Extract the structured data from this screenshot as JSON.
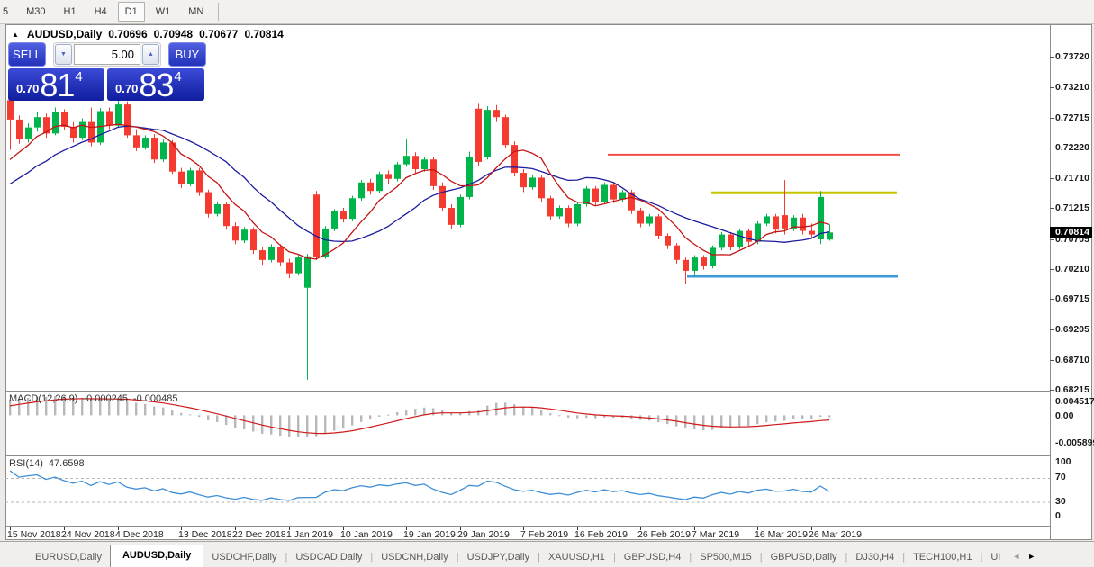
{
  "toolbar": {
    "timeframes": [
      "5",
      "M30",
      "H1",
      "H4",
      "D1",
      "W1",
      "MN"
    ],
    "active": "D1"
  },
  "title": {
    "symbol_period": "AUDUSD,Daily",
    "open": "0.70696",
    "high": "0.70948",
    "low": "0.70677",
    "close": "0.70814"
  },
  "icons": {
    "collapse": "▲",
    "spinner_up": "▲",
    "spinner_down": "▼",
    "scroll_left": "◄",
    "scroll_right": "►"
  },
  "trade_panel": {
    "sell_label": "SELL",
    "buy_label": "BUY",
    "volume": "5.00",
    "sell_price": {
      "small": "0.70",
      "big": "81",
      "sup": "4"
    },
    "buy_price": {
      "small": "0.70",
      "big": "83",
      "sup": "4"
    }
  },
  "indicators": {
    "macd_label": "MACD(12,26,9)",
    "macd_value": "-0.000245",
    "macd_signal": "-0.000485",
    "rsi_label": "RSI(14)",
    "rsi_value": "47.6598"
  },
  "price_axis": {
    "labels": [
      "0.73720",
      "0.73210",
      "0.72715",
      "0.72220",
      "0.71710",
      "0.71215",
      "0.70705",
      "0.70210",
      "0.69715",
      "0.69205",
      "0.68710",
      "0.68215"
    ],
    "current": "0.70814"
  },
  "macd_axis": [
    "0.004517",
    "0.00",
    "-0.005899"
  ],
  "rsi_axis": [
    "100",
    "70",
    "30",
    "0"
  ],
  "date_axis": [
    {
      "text": "15 Nov 2018",
      "i": 0
    },
    {
      "text": "24 Nov 2018",
      "i": 6
    },
    {
      "text": "4 Dec 2018",
      "i": 12
    },
    {
      "text": "13 Dec 2018",
      "i": 19
    },
    {
      "text": "22 Dec 2018",
      "i": 25
    },
    {
      "text": "1 Jan 2019",
      "i": 31
    },
    {
      "text": "10 Jan 2019",
      "i": 37
    },
    {
      "text": "19 Jan 2019",
      "i": 44
    },
    {
      "text": "29 Jan 2019",
      "i": 50
    },
    {
      "text": "7 Feb 2019",
      "i": 57
    },
    {
      "text": "16 Feb 2019",
      "i": 63
    },
    {
      "text": "26 Feb 2019",
      "i": 70
    },
    {
      "text": "7 Mar 2019",
      "i": 76
    },
    {
      "text": "16 Mar 2019",
      "i": 83
    },
    {
      "text": "26 Mar 2019",
      "i": 89
    }
  ],
  "tabs": {
    "items": [
      "EURUSD,Daily",
      "AUDUSD,Daily",
      "USDCHF,Daily",
      "USDCAD,Daily",
      "USDCNH,Daily",
      "USDJPY,Daily",
      "XAUUSD,H1",
      "GBPUSD,H4",
      "SP500,M15",
      "GBPUSD,Daily",
      "DJ30,H4",
      "TECH100,H1",
      "UI"
    ],
    "active": "AUDUSD,Daily"
  },
  "chart_data": {
    "type": "candlestick",
    "symbol": "AUDUSD",
    "timeframe": "Daily",
    "title": "AUDUSD,Daily",
    "ylim": [
      0.68215,
      0.7372
    ],
    "grid": false,
    "colors": {
      "bull": "#00b44c",
      "bear": "#f53b2f",
      "ma_fast": "#c41414",
      "ma_slow": "#1c1c9e",
      "macd_hist": "#b8b8b8",
      "macd_signal": "#d01a1a",
      "rsi": "#3f8fd6",
      "hline_red": "#f25048",
      "hline_yellow": "#c6c600",
      "hline_blue": "#3d9bd9"
    },
    "pre_history_closes": [
      0.71,
      0.7092,
      0.7115,
      0.7108,
      0.713,
      0.7122,
      0.7145,
      0.7138,
      0.716,
      0.7152,
      0.7175,
      0.7168,
      0.7195,
      0.7215,
      0.724
    ],
    "candles": [
      [
        0.73,
        0.7305,
        0.7218,
        0.7268
      ],
      [
        0.7268,
        0.7275,
        0.7228,
        0.7235
      ],
      [
        0.7235,
        0.7262,
        0.723,
        0.7255
      ],
      [
        0.7255,
        0.728,
        0.7248,
        0.7272
      ],
      [
        0.7272,
        0.7278,
        0.7238,
        0.7245
      ],
      [
        0.7245,
        0.7288,
        0.7242,
        0.728
      ],
      [
        0.728,
        0.7285,
        0.725,
        0.7256
      ],
      [
        0.7256,
        0.7264,
        0.723,
        0.7238
      ],
      [
        0.7238,
        0.727,
        0.7234,
        0.7264
      ],
      [
        0.7264,
        0.7288,
        0.7224,
        0.723
      ],
      [
        0.723,
        0.7287,
        0.7226,
        0.7282
      ],
      [
        0.7282,
        0.7288,
        0.7252,
        0.7258
      ],
      [
        0.7258,
        0.7305,
        0.7254,
        0.7293
      ],
      [
        0.7293,
        0.7298,
        0.7238,
        0.7242
      ],
      [
        0.7242,
        0.7252,
        0.7216,
        0.7222
      ],
      [
        0.7222,
        0.7242,
        0.7218,
        0.7238
      ],
      [
        0.7238,
        0.7244,
        0.7196,
        0.7202
      ],
      [
        0.7202,
        0.7235,
        0.7198,
        0.723
      ],
      [
        0.723,
        0.7234,
        0.7178,
        0.7182
      ],
      [
        0.7182,
        0.7188,
        0.7155,
        0.7162
      ],
      [
        0.7162,
        0.7188,
        0.7158,
        0.7184
      ],
      [
        0.7184,
        0.7188,
        0.7142,
        0.7148
      ],
      [
        0.7148,
        0.7152,
        0.7106,
        0.7112
      ],
      [
        0.7112,
        0.7132,
        0.7108,
        0.7128
      ],
      [
        0.7128,
        0.7132,
        0.7086,
        0.7092
      ],
      [
        0.7092,
        0.7098,
        0.7062,
        0.7068
      ],
      [
        0.7068,
        0.709,
        0.7064,
        0.7086
      ],
      [
        0.7086,
        0.709,
        0.7046,
        0.7052
      ],
      [
        0.7052,
        0.7058,
        0.7028,
        0.7036
      ],
      [
        0.7036,
        0.7062,
        0.7032,
        0.7058
      ],
      [
        0.7058,
        0.7062,
        0.7026,
        0.7032
      ],
      [
        0.7032,
        0.7038,
        0.7006,
        0.7014
      ],
      [
        0.7014,
        0.7044,
        0.701,
        0.704
      ],
      [
        0.699,
        0.7046,
        0.6838,
        0.7042
      ],
      [
        0.7144,
        0.715,
        0.7036,
        0.7041
      ],
      [
        0.7041,
        0.7092,
        0.7038,
        0.7088
      ],
      [
        0.7088,
        0.712,
        0.7084,
        0.7116
      ],
      [
        0.7116,
        0.7122,
        0.7098,
        0.7104
      ],
      [
        0.7104,
        0.7142,
        0.71,
        0.7138
      ],
      [
        0.7138,
        0.7168,
        0.7134,
        0.7164
      ],
      [
        0.7164,
        0.717,
        0.7144,
        0.715
      ],
      [
        0.715,
        0.7182,
        0.7146,
        0.7178
      ],
      [
        0.7178,
        0.7184,
        0.7162,
        0.717
      ],
      [
        0.717,
        0.7198,
        0.7166,
        0.7194
      ],
      [
        0.7194,
        0.7235,
        0.719,
        0.7208
      ],
      [
        0.7208,
        0.7214,
        0.718,
        0.7186
      ],
      [
        0.7186,
        0.7206,
        0.7182,
        0.7202
      ],
      [
        0.7202,
        0.7206,
        0.7152,
        0.7158
      ],
      [
        0.7158,
        0.7164,
        0.7116,
        0.7122
      ],
      [
        0.7122,
        0.7128,
        0.7088,
        0.7094
      ],
      [
        0.7094,
        0.7144,
        0.709,
        0.714
      ],
      [
        0.714,
        0.7215,
        0.7136,
        0.7206
      ],
      [
        0.7286,
        0.7294,
        0.7192,
        0.7198
      ],
      [
        0.7206,
        0.729,
        0.7202,
        0.7284
      ],
      [
        0.7284,
        0.7292,
        0.7264,
        0.7272
      ],
      [
        0.7272,
        0.7276,
        0.722,
        0.7226
      ],
      [
        0.7226,
        0.7232,
        0.7174,
        0.718
      ],
      [
        0.718,
        0.7186,
        0.7148,
        0.7156
      ],
      [
        0.7156,
        0.7176,
        0.7152,
        0.7172
      ],
      [
        0.7172,
        0.7176,
        0.7132,
        0.7138
      ],
      [
        0.7138,
        0.7142,
        0.7102,
        0.7108
      ],
      [
        0.7108,
        0.7126,
        0.7104,
        0.7122
      ],
      [
        0.7122,
        0.7126,
        0.709,
        0.7096
      ],
      [
        0.7096,
        0.7132,
        0.7092,
        0.7128
      ],
      [
        0.7128,
        0.7158,
        0.7124,
        0.7154
      ],
      [
        0.7154,
        0.7158,
        0.7126,
        0.7132
      ],
      [
        0.7132,
        0.7164,
        0.7128,
        0.716
      ],
      [
        0.716,
        0.7164,
        0.713,
        0.7136
      ],
      [
        0.7136,
        0.7152,
        0.7132,
        0.7148
      ],
      [
        0.7148,
        0.7152,
        0.7112,
        0.7118
      ],
      [
        0.7118,
        0.7122,
        0.709,
        0.7096
      ],
      [
        0.7096,
        0.7112,
        0.7092,
        0.7108
      ],
      [
        0.7108,
        0.7112,
        0.707,
        0.7076
      ],
      [
        0.7076,
        0.708,
        0.7054,
        0.706
      ],
      [
        0.706,
        0.7064,
        0.703,
        0.7036
      ],
      [
        0.7036,
        0.704,
        0.6996,
        0.7018
      ],
      [
        0.7018,
        0.7044,
        0.7008,
        0.704
      ],
      [
        0.704,
        0.7044,
        0.702,
        0.7026
      ],
      [
        0.7026,
        0.706,
        0.7022,
        0.7056
      ],
      [
        0.7056,
        0.7082,
        0.7052,
        0.7078
      ],
      [
        0.7078,
        0.7082,
        0.7052,
        0.7058
      ],
      [
        0.7058,
        0.7088,
        0.7054,
        0.7084
      ],
      [
        0.7084,
        0.7088,
        0.706,
        0.7066
      ],
      [
        0.7066,
        0.71,
        0.7062,
        0.7096
      ],
      [
        0.7096,
        0.7112,
        0.7092,
        0.7108
      ],
      [
        0.7108,
        0.7112,
        0.708,
        0.7086
      ],
      [
        0.711,
        0.7168,
        0.7078,
        0.7088
      ],
      [
        0.7088,
        0.711,
        0.7084,
        0.7106
      ],
      [
        0.7106,
        0.7112,
        0.7078,
        0.7084
      ],
      [
        0.7084,
        0.7096,
        0.7072,
        0.7078
      ],
      [
        0.707,
        0.715,
        0.7062,
        0.714
      ],
      [
        0.70696,
        0.70948,
        0.70677,
        0.70814
      ]
    ],
    "overlays": {
      "ma_fast_period": 7,
      "ma_slow_period": 15
    },
    "indicators": {
      "macd": {
        "params": [
          12,
          26,
          9
        ],
        "value": -0.000245,
        "signal": -0.000485,
        "axis_max": 0.004517,
        "axis_min": -0.005899
      },
      "rsi": {
        "period": 14,
        "value": 47.6598,
        "levels": [
          70,
          30
        ]
      }
    },
    "hlines": [
      {
        "name": "resistance-red",
        "color": "#f25048",
        "price": 0.721,
        "x_from": 675,
        "x_to": 1000,
        "width": 2
      },
      {
        "name": "resistance-yellow",
        "color": "#c6c600",
        "price": 0.7147,
        "x_from": 790,
        "x_to": 996,
        "width": 3
      },
      {
        "name": "support-blue",
        "color": "#3d9bd9",
        "price": 0.7009,
        "x_from": 763,
        "x_to": 997,
        "width": 3
      }
    ]
  }
}
